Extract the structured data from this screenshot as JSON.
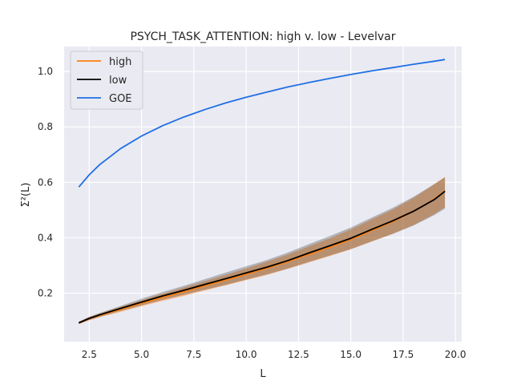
{
  "chart_data": {
    "type": "line",
    "title": "PSYCH_TASK_ATTENTION: high v. low - Levelvar",
    "xlabel": "L",
    "ylabel": "Σ²(L)",
    "xlim": [
      1.3,
      20.3
    ],
    "ylim": [
      0.025,
      1.09
    ],
    "xticks": [
      2.5,
      5.0,
      7.5,
      10.0,
      12.5,
      15.0,
      17.5,
      20.0
    ],
    "xtick_labels": [
      "2.5",
      "5.0",
      "7.5",
      "10.0",
      "12.5",
      "15.0",
      "17.5",
      "20.0"
    ],
    "yticks": [
      0.2,
      0.4,
      0.6,
      0.8,
      1.0
    ],
    "ytick_labels": [
      "0.2",
      "0.4",
      "0.6",
      "0.8",
      "1.0"
    ],
    "grid": true,
    "legend_position": "top-left",
    "x": [
      2.0,
      2.5,
      3.0,
      4.0,
      5.0,
      6.0,
      7.0,
      8.0,
      9.0,
      10.0,
      11.0,
      12.0,
      13.0,
      14.0,
      15.0,
      16.0,
      17.0,
      18.0,
      19.0,
      19.5
    ],
    "series": [
      {
        "name": "high",
        "color": "#ff7f0e",
        "values": [
          0.092,
          0.108,
          0.12,
          0.142,
          0.164,
          0.185,
          0.205,
          0.226,
          0.247,
          0.268,
          0.29,
          0.314,
          0.34,
          0.366,
          0.394,
          0.426,
          0.458,
          0.495,
          0.54,
          0.57
        ],
        "band_lower": [
          0.088,
          0.102,
          0.113,
          0.133,
          0.153,
          0.172,
          0.19,
          0.209,
          0.228,
          0.247,
          0.266,
          0.288,
          0.311,
          0.334,
          0.358,
          0.386,
          0.414,
          0.446,
          0.486,
          0.51
        ],
        "band_upper": [
          0.096,
          0.114,
          0.127,
          0.151,
          0.175,
          0.198,
          0.22,
          0.243,
          0.266,
          0.289,
          0.314,
          0.34,
          0.369,
          0.398,
          0.43,
          0.466,
          0.502,
          0.544,
          0.594,
          0.62
        ]
      },
      {
        "name": "low",
        "color": "#000000",
        "values": [
          0.093,
          0.109,
          0.122,
          0.145,
          0.168,
          0.19,
          0.21,
          0.231,
          0.252,
          0.273,
          0.294,
          0.318,
          0.345,
          0.371,
          0.398,
          0.43,
          0.461,
          0.496,
          0.538,
          0.568
        ],
        "band_lower": [
          0.089,
          0.103,
          0.115,
          0.136,
          0.156,
          0.176,
          0.194,
          0.212,
          0.23,
          0.249,
          0.268,
          0.289,
          0.313,
          0.336,
          0.359,
          0.387,
          0.414,
          0.444,
          0.482,
          0.505
        ],
        "band_upper": [
          0.097,
          0.115,
          0.129,
          0.154,
          0.18,
          0.204,
          0.226,
          0.25,
          0.274,
          0.297,
          0.32,
          0.347,
          0.377,
          0.406,
          0.437,
          0.473,
          0.508,
          0.548,
          0.594,
          0.618
        ]
      },
      {
        "name": "GOE",
        "color": "#1f6fe5",
        "values": [
          0.583,
          0.627,
          0.664,
          0.722,
          0.767,
          0.804,
          0.835,
          0.862,
          0.886,
          0.907,
          0.926,
          0.944,
          0.96,
          0.975,
          0.989,
          1.002,
          1.014,
          1.026,
          1.037,
          1.043
        ]
      }
    ]
  }
}
